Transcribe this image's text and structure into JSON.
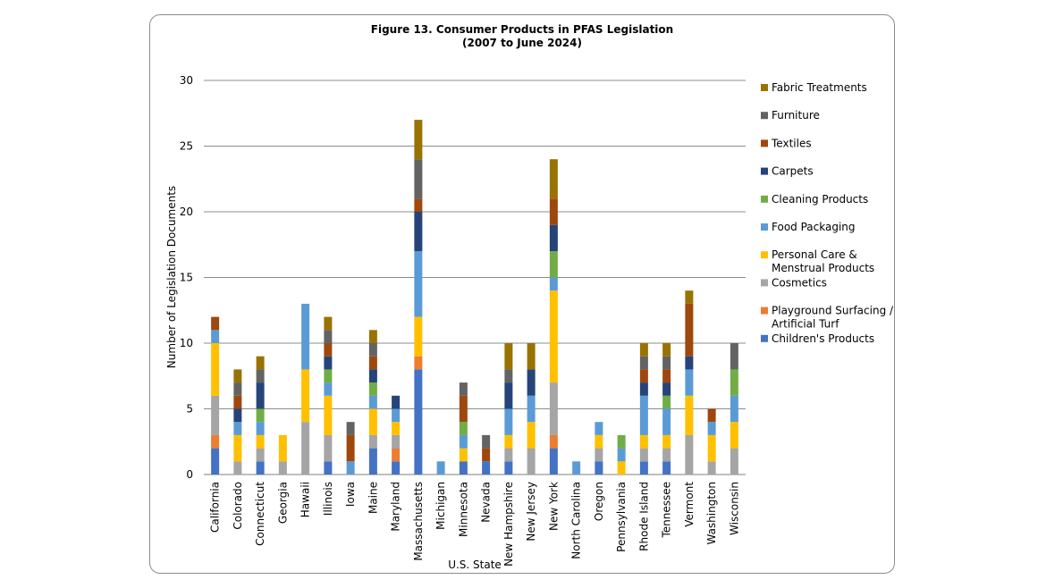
{
  "chart_data": {
    "type": "bar",
    "stacked": true,
    "title": "Figure 13. Consumer Products in PFAS Legislation",
    "subtitle": "(2007 to June 2024)",
    "xlabel": "U.S. State",
    "ylabel": "Number of Legislation Documents",
    "ylim": [
      0,
      30
    ],
    "yticks": [
      0,
      5,
      10,
      15,
      20,
      25,
      30
    ],
    "grid": true,
    "legend_position": "right",
    "categories": [
      "California",
      "Colorado",
      "Connecticut",
      "Georgia",
      "Hawaii",
      "Illinois",
      "Iowa",
      "Maine",
      "Maryland",
      "Massachusetts",
      "Michigan",
      "Minnesota",
      "Nevada",
      "New Hampshire",
      "New Jersey",
      "New York",
      "North Carolina",
      "Oregon",
      "Pennsylvania",
      "Rhode Island",
      "Tennessee",
      "Vermont",
      "Washington",
      "Wisconsin"
    ],
    "series": [
      {
        "name": "Children's Products",
        "color": "#4472c4",
        "values": [
          2,
          0,
          1,
          0,
          0,
          1,
          0,
          2,
          1,
          8,
          0,
          1,
          1,
          1,
          0,
          2,
          0,
          1,
          0,
          1,
          1,
          0,
          0,
          0
        ]
      },
      {
        "name": "Playground Surfacing / Artificial Turf",
        "color": "#ed7d31",
        "values": [
          1,
          0,
          0,
          0,
          0,
          0,
          0,
          0,
          1,
          1,
          0,
          0,
          0,
          0,
          0,
          1,
          0,
          0,
          0,
          0,
          0,
          0,
          0,
          0
        ]
      },
      {
        "name": "Cosmetics",
        "color": "#a5a5a5",
        "values": [
          3,
          1,
          1,
          1,
          4,
          2,
          0,
          1,
          1,
          0,
          0,
          0,
          0,
          1,
          2,
          4,
          0,
          1,
          0,
          1,
          1,
          3,
          1,
          2
        ]
      },
      {
        "name": "Personal Care & Menstrual Products",
        "color": "#ffc000",
        "values": [
          4,
          2,
          1,
          2,
          4,
          3,
          0,
          2,
          1,
          3,
          0,
          1,
          0,
          1,
          2,
          7,
          0,
          1,
          1,
          1,
          1,
          3,
          2,
          2
        ]
      },
      {
        "name": "Food Packaging",
        "color": "#5b9bd5",
        "values": [
          1,
          1,
          1,
          0,
          5,
          1,
          1,
          1,
          1,
          5,
          1,
          1,
          0,
          2,
          2,
          1,
          1,
          1,
          1,
          3,
          2,
          2,
          1,
          2
        ]
      },
      {
        "name": "Cleaning Products",
        "color": "#70ad47",
        "values": [
          0,
          0,
          1,
          0,
          0,
          1,
          0,
          1,
          0,
          0,
          0,
          1,
          0,
          0,
          0,
          2,
          0,
          0,
          1,
          0,
          1,
          0,
          0,
          2
        ]
      },
      {
        "name": "Carpets",
        "color": "#264478",
        "values": [
          0,
          1,
          2,
          0,
          0,
          1,
          0,
          1,
          1,
          3,
          0,
          0,
          0,
          2,
          2,
          2,
          0,
          0,
          0,
          1,
          1,
          1,
          0,
          0
        ]
      },
      {
        "name": "Textiles",
        "color": "#9e480e",
        "values": [
          1,
          1,
          0,
          0,
          0,
          1,
          2,
          1,
          0,
          1,
          0,
          2,
          1,
          0,
          0,
          2,
          0,
          0,
          0,
          1,
          1,
          4,
          1,
          0
        ]
      },
      {
        "name": "Furniture",
        "color": "#636363",
        "values": [
          0,
          1,
          1,
          0,
          0,
          1,
          1,
          1,
          0,
          3,
          0,
          1,
          1,
          1,
          0,
          0,
          0,
          0,
          0,
          1,
          1,
          0,
          0,
          2
        ]
      },
      {
        "name": "Fabric Treatments",
        "color": "#997300",
        "values": [
          0,
          1,
          1,
          0,
          0,
          1,
          0,
          1,
          0,
          3,
          0,
          0,
          0,
          2,
          2,
          3,
          0,
          0,
          0,
          1,
          1,
          1,
          0,
          0
        ]
      }
    ],
    "legend_order": [
      "Fabric Treatments",
      "Furniture",
      "Textiles",
      "Carpets",
      "Cleaning Products",
      "Food Packaging",
      "Personal Care & Menstrual Products",
      "Cosmetics",
      "Playground Surfacing / Artificial Turf",
      "Children's Products"
    ],
    "legend_lines": {
      "Personal Care & Menstrual Products": [
        "Personal Care &",
        "Menstrual Products"
      ],
      "Playground Surfacing / Artificial Turf": [
        "Playground Surfacing /",
        "Artificial Turf"
      ]
    }
  }
}
